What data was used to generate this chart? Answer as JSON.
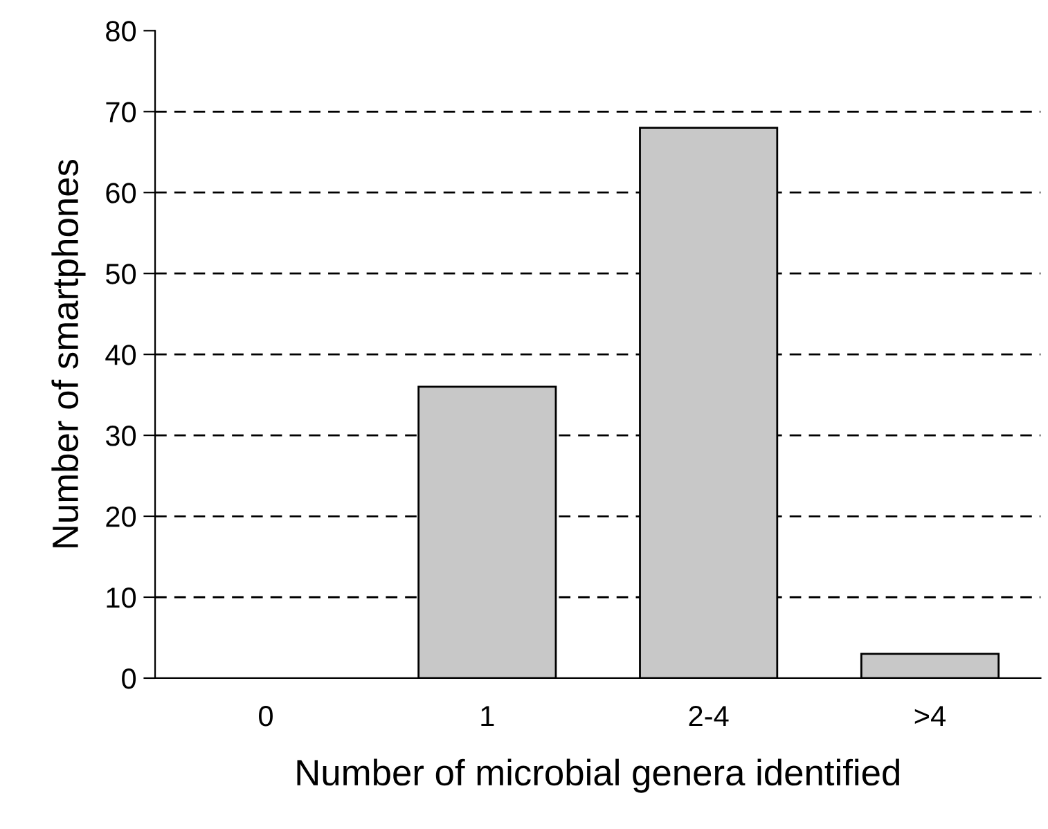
{
  "chart_data": {
    "type": "bar",
    "xlabel": "Number of microbial genera identified",
    "ylabel": "Number of smartphones",
    "categories": [
      "0",
      "1",
      "2-4",
      ">4"
    ],
    "values": [
      0,
      36,
      68,
      3
    ],
    "color": "#c8c8c8",
    "ylim": [
      0,
      80
    ],
    "yticks": [
      0,
      10,
      20,
      30,
      40,
      50,
      60,
      70,
      80
    ],
    "grid": "y",
    "line_style": "dashed"
  }
}
